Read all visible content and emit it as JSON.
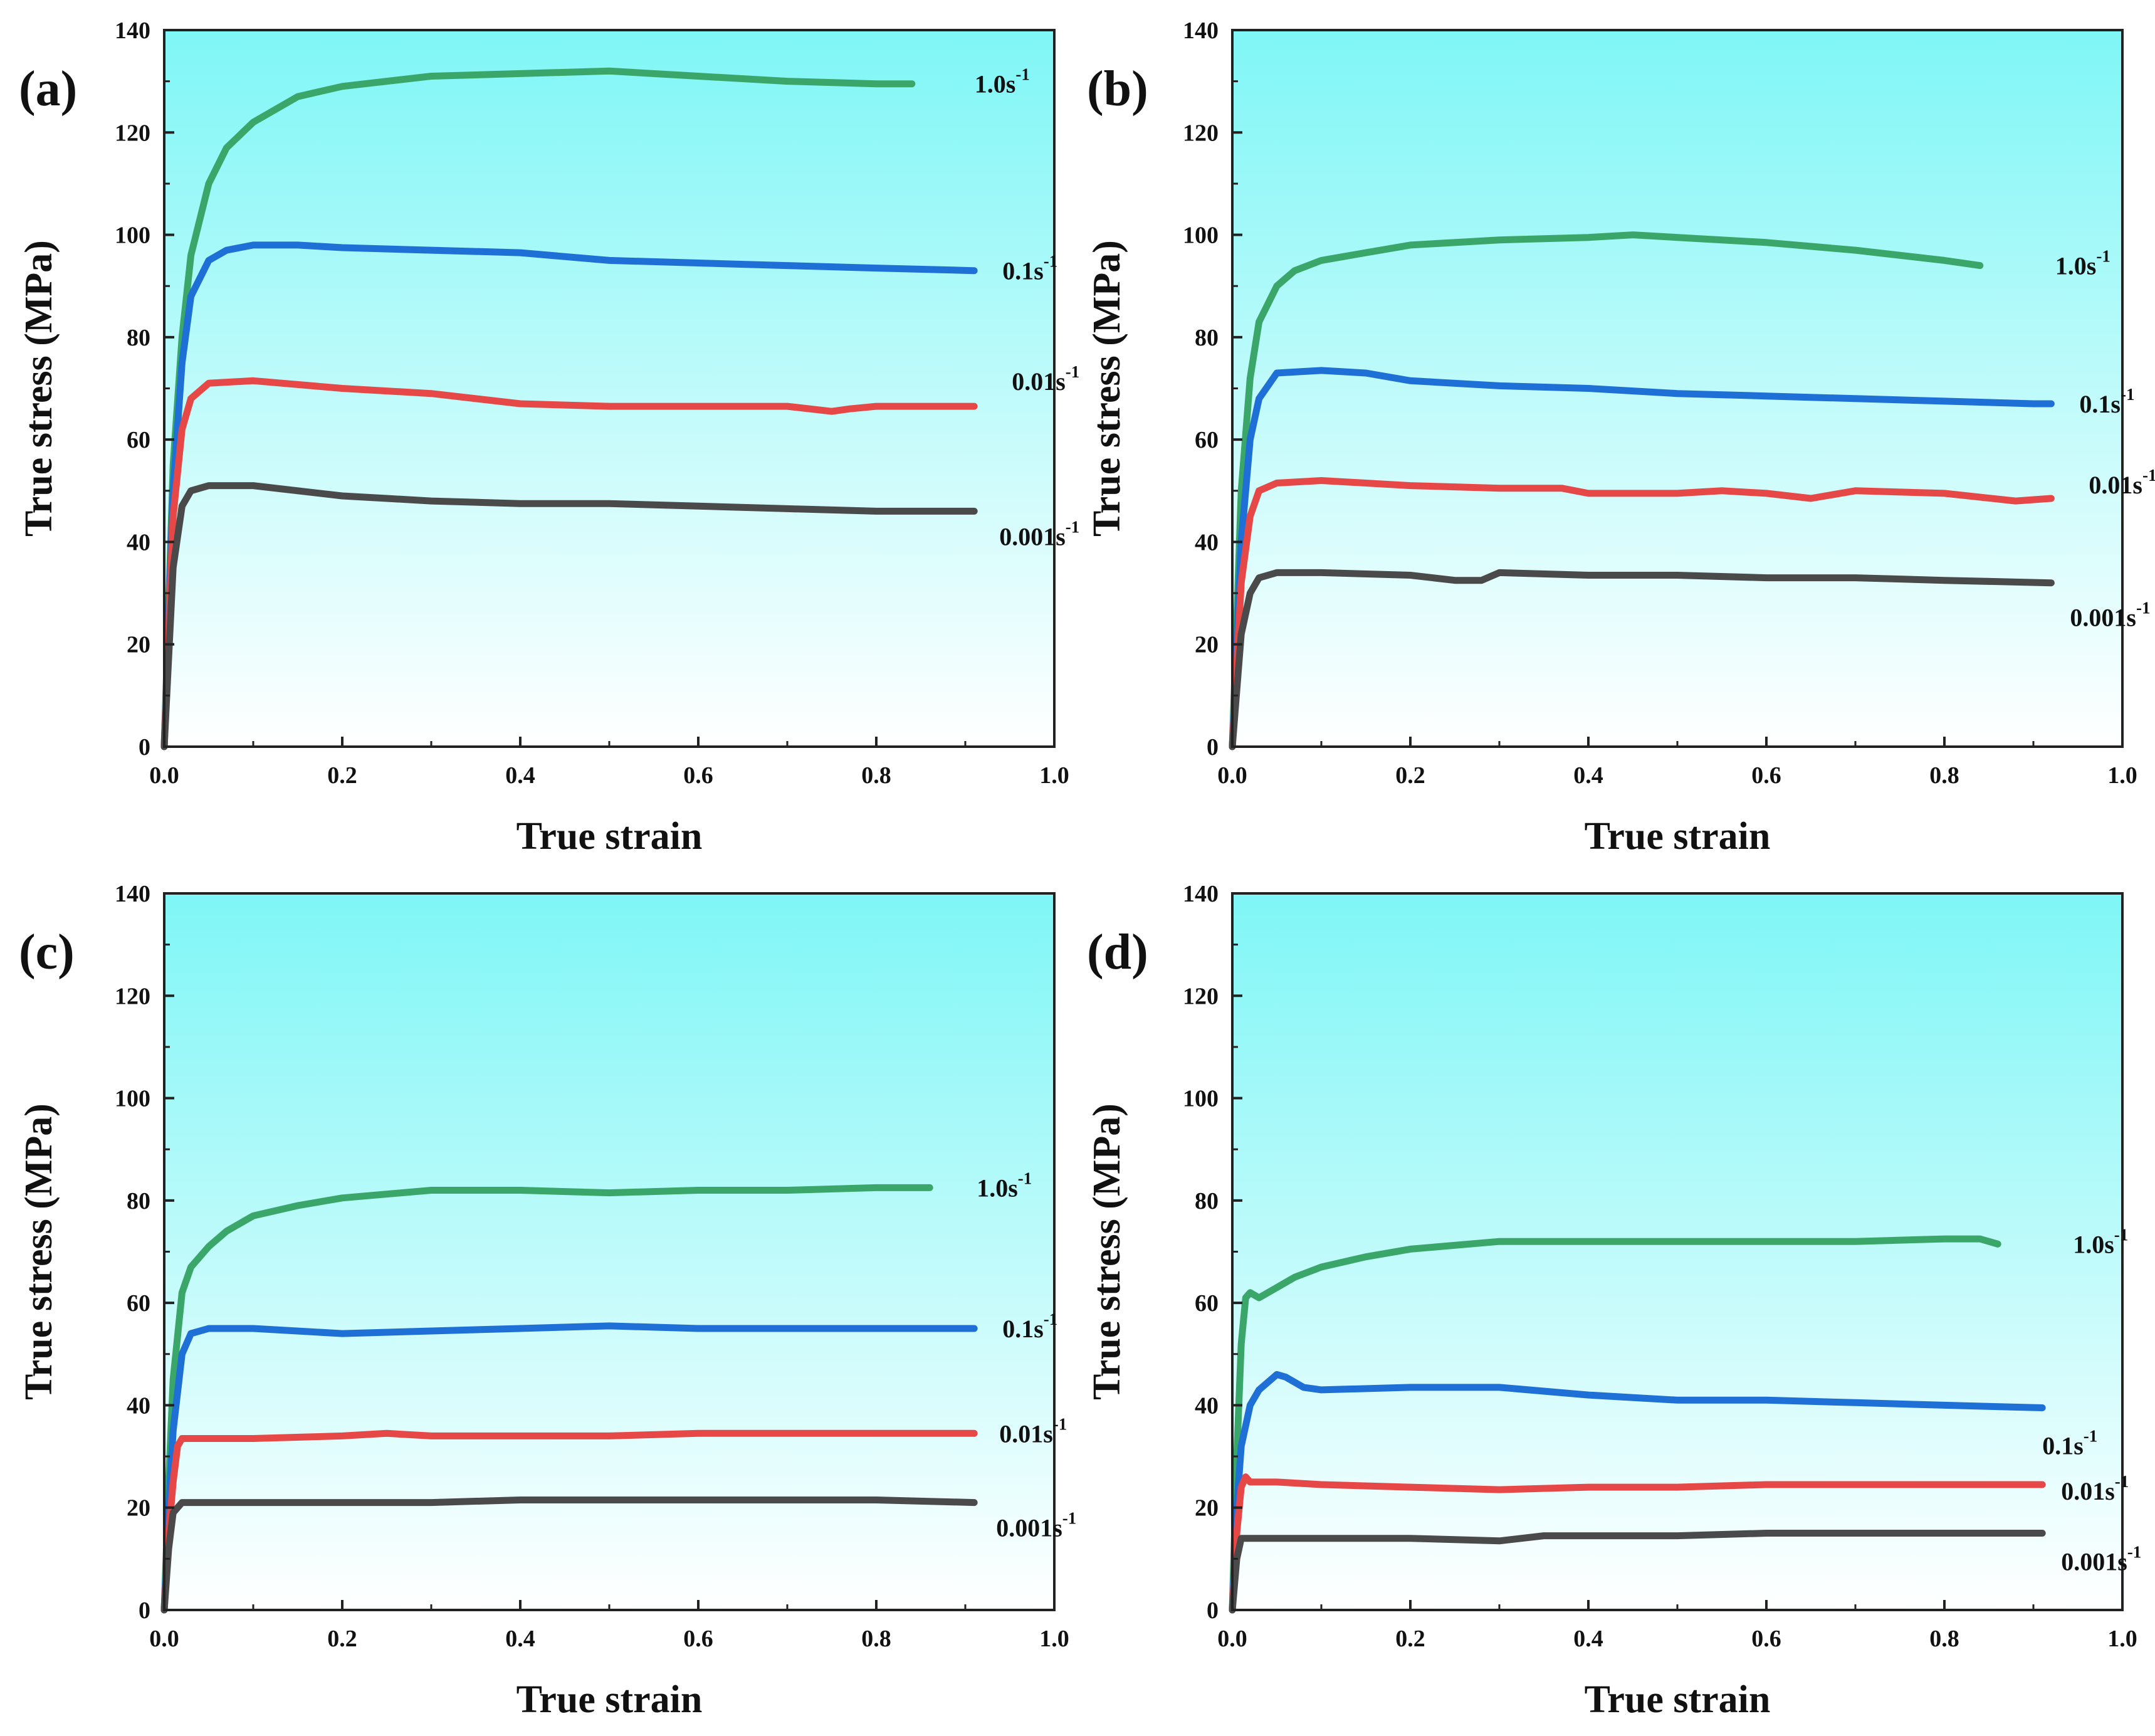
{
  "figure": {
    "panels": [
      {
        "letter": "(a)",
        "xlabel": "True strain",
        "ylabel": "True stress (MPa)"
      },
      {
        "letter": "(b)",
        "xlabel": "True strain",
        "ylabel": "True stress (MPa)"
      },
      {
        "letter": "(c)",
        "xlabel": "True strain",
        "ylabel": "True stress (MPa)"
      },
      {
        "letter": "(d)",
        "xlabel": "True strain",
        "ylabel": "True stress (MPa)"
      }
    ]
  },
  "colors": {
    "plot_bg_top": "#7ff6f6",
    "plot_bg_bottom": "#ffffff",
    "axis": "#222222",
    "series": {
      "1.0": "#3aa66a",
      "0.1": "#1e6fd6",
      "0.01": "#e64747",
      "0.001": "#4a4a4a"
    }
  },
  "chart_data": [
    {
      "type": "line",
      "panel": "(a)",
      "xlabel": "True strain",
      "ylabel": "True stress (MPa)",
      "xlim": [
        0,
        1.0
      ],
      "ylim": [
        0,
        140
      ],
      "xticks": [
        "0.0",
        "0.2",
        "0.4",
        "0.6",
        "0.8",
        "1.0"
      ],
      "yticks": [
        "0",
        "20",
        "40",
        "60",
        "80",
        "100",
        "120",
        "140"
      ],
      "grid": false,
      "series": [
        {
          "name": "1.0s-1",
          "label_base": "1.0s",
          "label_sup": "-1",
          "color": "#3aa66a",
          "x": [
            0,
            0.01,
            0.02,
            0.03,
            0.05,
            0.07,
            0.1,
            0.15,
            0.2,
            0.3,
            0.4,
            0.5,
            0.6,
            0.7,
            0.8,
            0.84
          ],
          "y": [
            0,
            55,
            80,
            96,
            110,
            117,
            122,
            127,
            129,
            131,
            131.5,
            132,
            131,
            130,
            129.5,
            129.5
          ]
        },
        {
          "name": "0.1s-1",
          "label_base": "0.1s",
          "label_sup": "-1",
          "color": "#1e6fd6",
          "x": [
            0,
            0.01,
            0.02,
            0.03,
            0.05,
            0.07,
            0.1,
            0.15,
            0.2,
            0.3,
            0.4,
            0.5,
            0.6,
            0.7,
            0.8,
            0.91
          ],
          "y": [
            0,
            50,
            75,
            88,
            95,
            97,
            98,
            98,
            97.5,
            97,
            96.5,
            95,
            94.5,
            94,
            93.5,
            93
          ]
        },
        {
          "name": "0.01s-1",
          "label_base": "0.01s",
          "label_sup": "-1",
          "color": "#e64747",
          "x": [
            0,
            0.01,
            0.02,
            0.03,
            0.05,
            0.1,
            0.2,
            0.3,
            0.4,
            0.5,
            0.6,
            0.7,
            0.75,
            0.77,
            0.8,
            0.91
          ],
          "y": [
            0,
            45,
            62,
            68,
            71,
            71.5,
            70,
            69,
            67,
            66.5,
            66.5,
            66.5,
            65.5,
            66,
            66.5,
            66.5
          ]
        },
        {
          "name": "0.001s-1",
          "label_base": "0.001s",
          "label_sup": "-1",
          "color": "#4a4a4a",
          "x": [
            0,
            0.01,
            0.02,
            0.03,
            0.05,
            0.1,
            0.2,
            0.25,
            0.3,
            0.4,
            0.5,
            0.6,
            0.7,
            0.8,
            0.91
          ],
          "y": [
            0,
            35,
            47,
            50,
            51,
            51,
            49,
            48.5,
            48,
            47.5,
            47.5,
            47,
            46.5,
            46,
            46
          ]
        }
      ]
    },
    {
      "type": "line",
      "panel": "(b)",
      "xlabel": "True strain",
      "ylabel": "True stress (MPa)",
      "xlim": [
        0,
        1.0
      ],
      "ylim": [
        0,
        140
      ],
      "xticks": [
        "0.0",
        "0.2",
        "0.4",
        "0.6",
        "0.8",
        "1.0"
      ],
      "yticks": [
        "0",
        "20",
        "40",
        "60",
        "80",
        "100",
        "120",
        "140"
      ],
      "grid": false,
      "series": [
        {
          "name": "1.0s-1",
          "label_base": "1.0s",
          "label_sup": "-1",
          "color": "#3aa66a",
          "x": [
            0,
            0.01,
            0.02,
            0.03,
            0.05,
            0.07,
            0.1,
            0.15,
            0.2,
            0.3,
            0.4,
            0.45,
            0.5,
            0.6,
            0.7,
            0.8,
            0.84
          ],
          "y": [
            0,
            50,
            72,
            83,
            90,
            93,
            95,
            96.5,
            98,
            99,
            99.5,
            100,
            99.5,
            98.5,
            97,
            95,
            94
          ]
        },
        {
          "name": "0.1s-1",
          "label_base": "0.1s",
          "label_sup": "-1",
          "color": "#1e6fd6",
          "x": [
            0,
            0.01,
            0.02,
            0.03,
            0.05,
            0.1,
            0.15,
            0.2,
            0.3,
            0.4,
            0.5,
            0.6,
            0.7,
            0.8,
            0.9,
            0.92
          ],
          "y": [
            0,
            40,
            60,
            68,
            73,
            73.5,
            73,
            71.5,
            70.5,
            70,
            69,
            68.5,
            68,
            67.5,
            67,
            67
          ]
        },
        {
          "name": "0.01s-1",
          "label_base": "0.01s",
          "label_sup": "-1",
          "color": "#e64747",
          "x": [
            0,
            0.01,
            0.02,
            0.03,
            0.05,
            0.1,
            0.2,
            0.3,
            0.37,
            0.4,
            0.5,
            0.55,
            0.6,
            0.65,
            0.7,
            0.8,
            0.88,
            0.92
          ],
          "y": [
            0,
            32,
            45,
            50,
            51.5,
            52,
            51,
            50.5,
            50.5,
            49.5,
            49.5,
            50,
            49.5,
            48.5,
            50,
            49.5,
            48,
            48.5
          ]
        },
        {
          "name": "0.001s-1",
          "label_base": "0.001s",
          "label_sup": "-1",
          "color": "#4a4a4a",
          "x": [
            0,
            0.01,
            0.02,
            0.03,
            0.05,
            0.1,
            0.2,
            0.25,
            0.28,
            0.3,
            0.4,
            0.5,
            0.6,
            0.7,
            0.8,
            0.92
          ],
          "y": [
            0,
            22,
            30,
            33,
            34,
            34,
            33.5,
            32.5,
            32.5,
            34,
            33.5,
            33.5,
            33,
            33,
            32.5,
            32
          ]
        }
      ]
    },
    {
      "type": "line",
      "panel": "(c)",
      "xlabel": "True strain",
      "ylabel": "True stress (MPa)",
      "xlim": [
        0,
        1.0
      ],
      "ylim": [
        0,
        140
      ],
      "xticks": [
        "0.0",
        "0.2",
        "0.4",
        "0.6",
        "0.8",
        "1.0"
      ],
      "yticks": [
        "0",
        "20",
        "40",
        "60",
        "80",
        "100",
        "120",
        "140"
      ],
      "grid": false,
      "series": [
        {
          "name": "1.0s-1",
          "label_base": "1.0s",
          "label_sup": "-1",
          "color": "#3aa66a",
          "x": [
            0,
            0.005,
            0.01,
            0.02,
            0.03,
            0.05,
            0.07,
            0.1,
            0.15,
            0.2,
            0.3,
            0.4,
            0.5,
            0.6,
            0.7,
            0.8,
            0.86
          ],
          "y": [
            0,
            25,
            45,
            62,
            67,
            71,
            74,
            77,
            79,
            80.5,
            82,
            82,
            81.5,
            82,
            82,
            82.5,
            82.5
          ]
        },
        {
          "name": "0.1s-1",
          "label_base": "0.1s",
          "label_sup": "-1",
          "color": "#1e6fd6",
          "x": [
            0,
            0.005,
            0.01,
            0.02,
            0.03,
            0.05,
            0.1,
            0.2,
            0.3,
            0.4,
            0.5,
            0.6,
            0.7,
            0.8,
            0.91
          ],
          "y": [
            0,
            20,
            35,
            50,
            54,
            55,
            55,
            54,
            54.5,
            55,
            55.5,
            55,
            55,
            55,
            55
          ]
        },
        {
          "name": "0.01s-1",
          "label_base": "0.01s",
          "label_sup": "-1",
          "color": "#e64747",
          "x": [
            0,
            0.005,
            0.01,
            0.015,
            0.02,
            0.05,
            0.1,
            0.2,
            0.25,
            0.3,
            0.4,
            0.5,
            0.6,
            0.7,
            0.8,
            0.91
          ],
          "y": [
            0,
            15,
            25,
            32,
            33.5,
            33.5,
            33.5,
            34,
            34.5,
            34,
            34,
            34,
            34.5,
            34.5,
            34.5,
            34.5
          ]
        },
        {
          "name": "0.001s-1",
          "label_base": "0.001s",
          "label_sup": "-1",
          "color": "#4a4a4a",
          "x": [
            0,
            0.005,
            0.01,
            0.02,
            0.05,
            0.1,
            0.2,
            0.3,
            0.4,
            0.5,
            0.6,
            0.7,
            0.8,
            0.91
          ],
          "y": [
            0,
            12,
            19,
            21,
            21,
            21,
            21,
            21,
            21.5,
            21.5,
            21.5,
            21.5,
            21.5,
            21
          ]
        }
      ]
    },
    {
      "type": "line",
      "panel": "(d)",
      "xlabel": "True strain",
      "ylabel": "True stress (MPa)",
      "xlim": [
        0,
        1.0
      ],
      "ylim": [
        0,
        140
      ],
      "xticks": [
        "0.0",
        "0.2",
        "0.4",
        "0.6",
        "0.8",
        "1.0"
      ],
      "yticks": [
        "0",
        "20",
        "40",
        "60",
        "80",
        "100",
        "120",
        "140"
      ],
      "grid": false,
      "series": [
        {
          "name": "1.0s-1",
          "label_base": "1.0s",
          "label_sup": "-1",
          "color": "#3aa66a",
          "x": [
            0,
            0.005,
            0.01,
            0.015,
            0.02,
            0.03,
            0.05,
            0.07,
            0.1,
            0.15,
            0.2,
            0.3,
            0.4,
            0.5,
            0.6,
            0.7,
            0.8,
            0.84,
            0.86
          ],
          "y": [
            0,
            30,
            52,
            61,
            62,
            61,
            63,
            65,
            67,
            69,
            70.5,
            72,
            72,
            72,
            72,
            72,
            72.5,
            72.5,
            71.5
          ]
        },
        {
          "name": "0.1s-1",
          "label_base": "0.1s",
          "label_sup": "-1",
          "color": "#1e6fd6",
          "x": [
            0,
            0.005,
            0.01,
            0.02,
            0.03,
            0.05,
            0.06,
            0.08,
            0.1,
            0.2,
            0.3,
            0.4,
            0.5,
            0.6,
            0.7,
            0.8,
            0.91
          ],
          "y": [
            0,
            20,
            32,
            40,
            43,
            46,
            45.5,
            43.5,
            43,
            43.5,
            43.5,
            42,
            41,
            41,
            40.5,
            40,
            39.5
          ]
        },
        {
          "name": "0.01s-1",
          "label_base": "0.01s",
          "label_sup": "-1",
          "color": "#e64747",
          "x": [
            0,
            0.005,
            0.01,
            0.015,
            0.02,
            0.05,
            0.1,
            0.2,
            0.3,
            0.4,
            0.5,
            0.6,
            0.7,
            0.8,
            0.91
          ],
          "y": [
            0,
            15,
            24,
            26,
            25,
            25,
            24.5,
            24,
            23.5,
            24,
            24,
            24.5,
            24.5,
            24.5,
            24.5
          ]
        },
        {
          "name": "0.001s-1",
          "label_base": "0.001s",
          "label_sup": "-1",
          "color": "#4a4a4a",
          "x": [
            0,
            0.005,
            0.01,
            0.02,
            0.05,
            0.1,
            0.2,
            0.3,
            0.35,
            0.4,
            0.5,
            0.6,
            0.7,
            0.8,
            0.91
          ],
          "y": [
            0,
            10,
            14,
            14,
            14,
            14,
            14,
            13.5,
            14.5,
            14.5,
            14.5,
            15,
            15,
            15,
            15
          ]
        }
      ]
    }
  ]
}
